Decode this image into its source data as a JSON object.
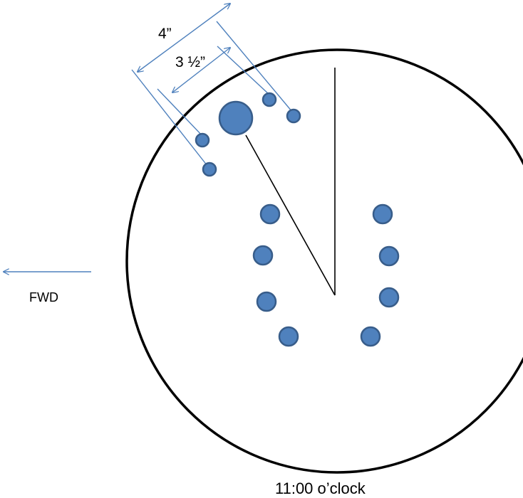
{
  "labels": {
    "dimension_outer": "4”",
    "dimension_inner": "3 ½”",
    "direction": "FWD",
    "caption": "11:00 o’clock"
  },
  "colors": {
    "hole_fill": "#4f81bd",
    "hole_stroke": "#385d8a",
    "dimension_line": "#4f81bd",
    "outline": "#000000"
  }
}
